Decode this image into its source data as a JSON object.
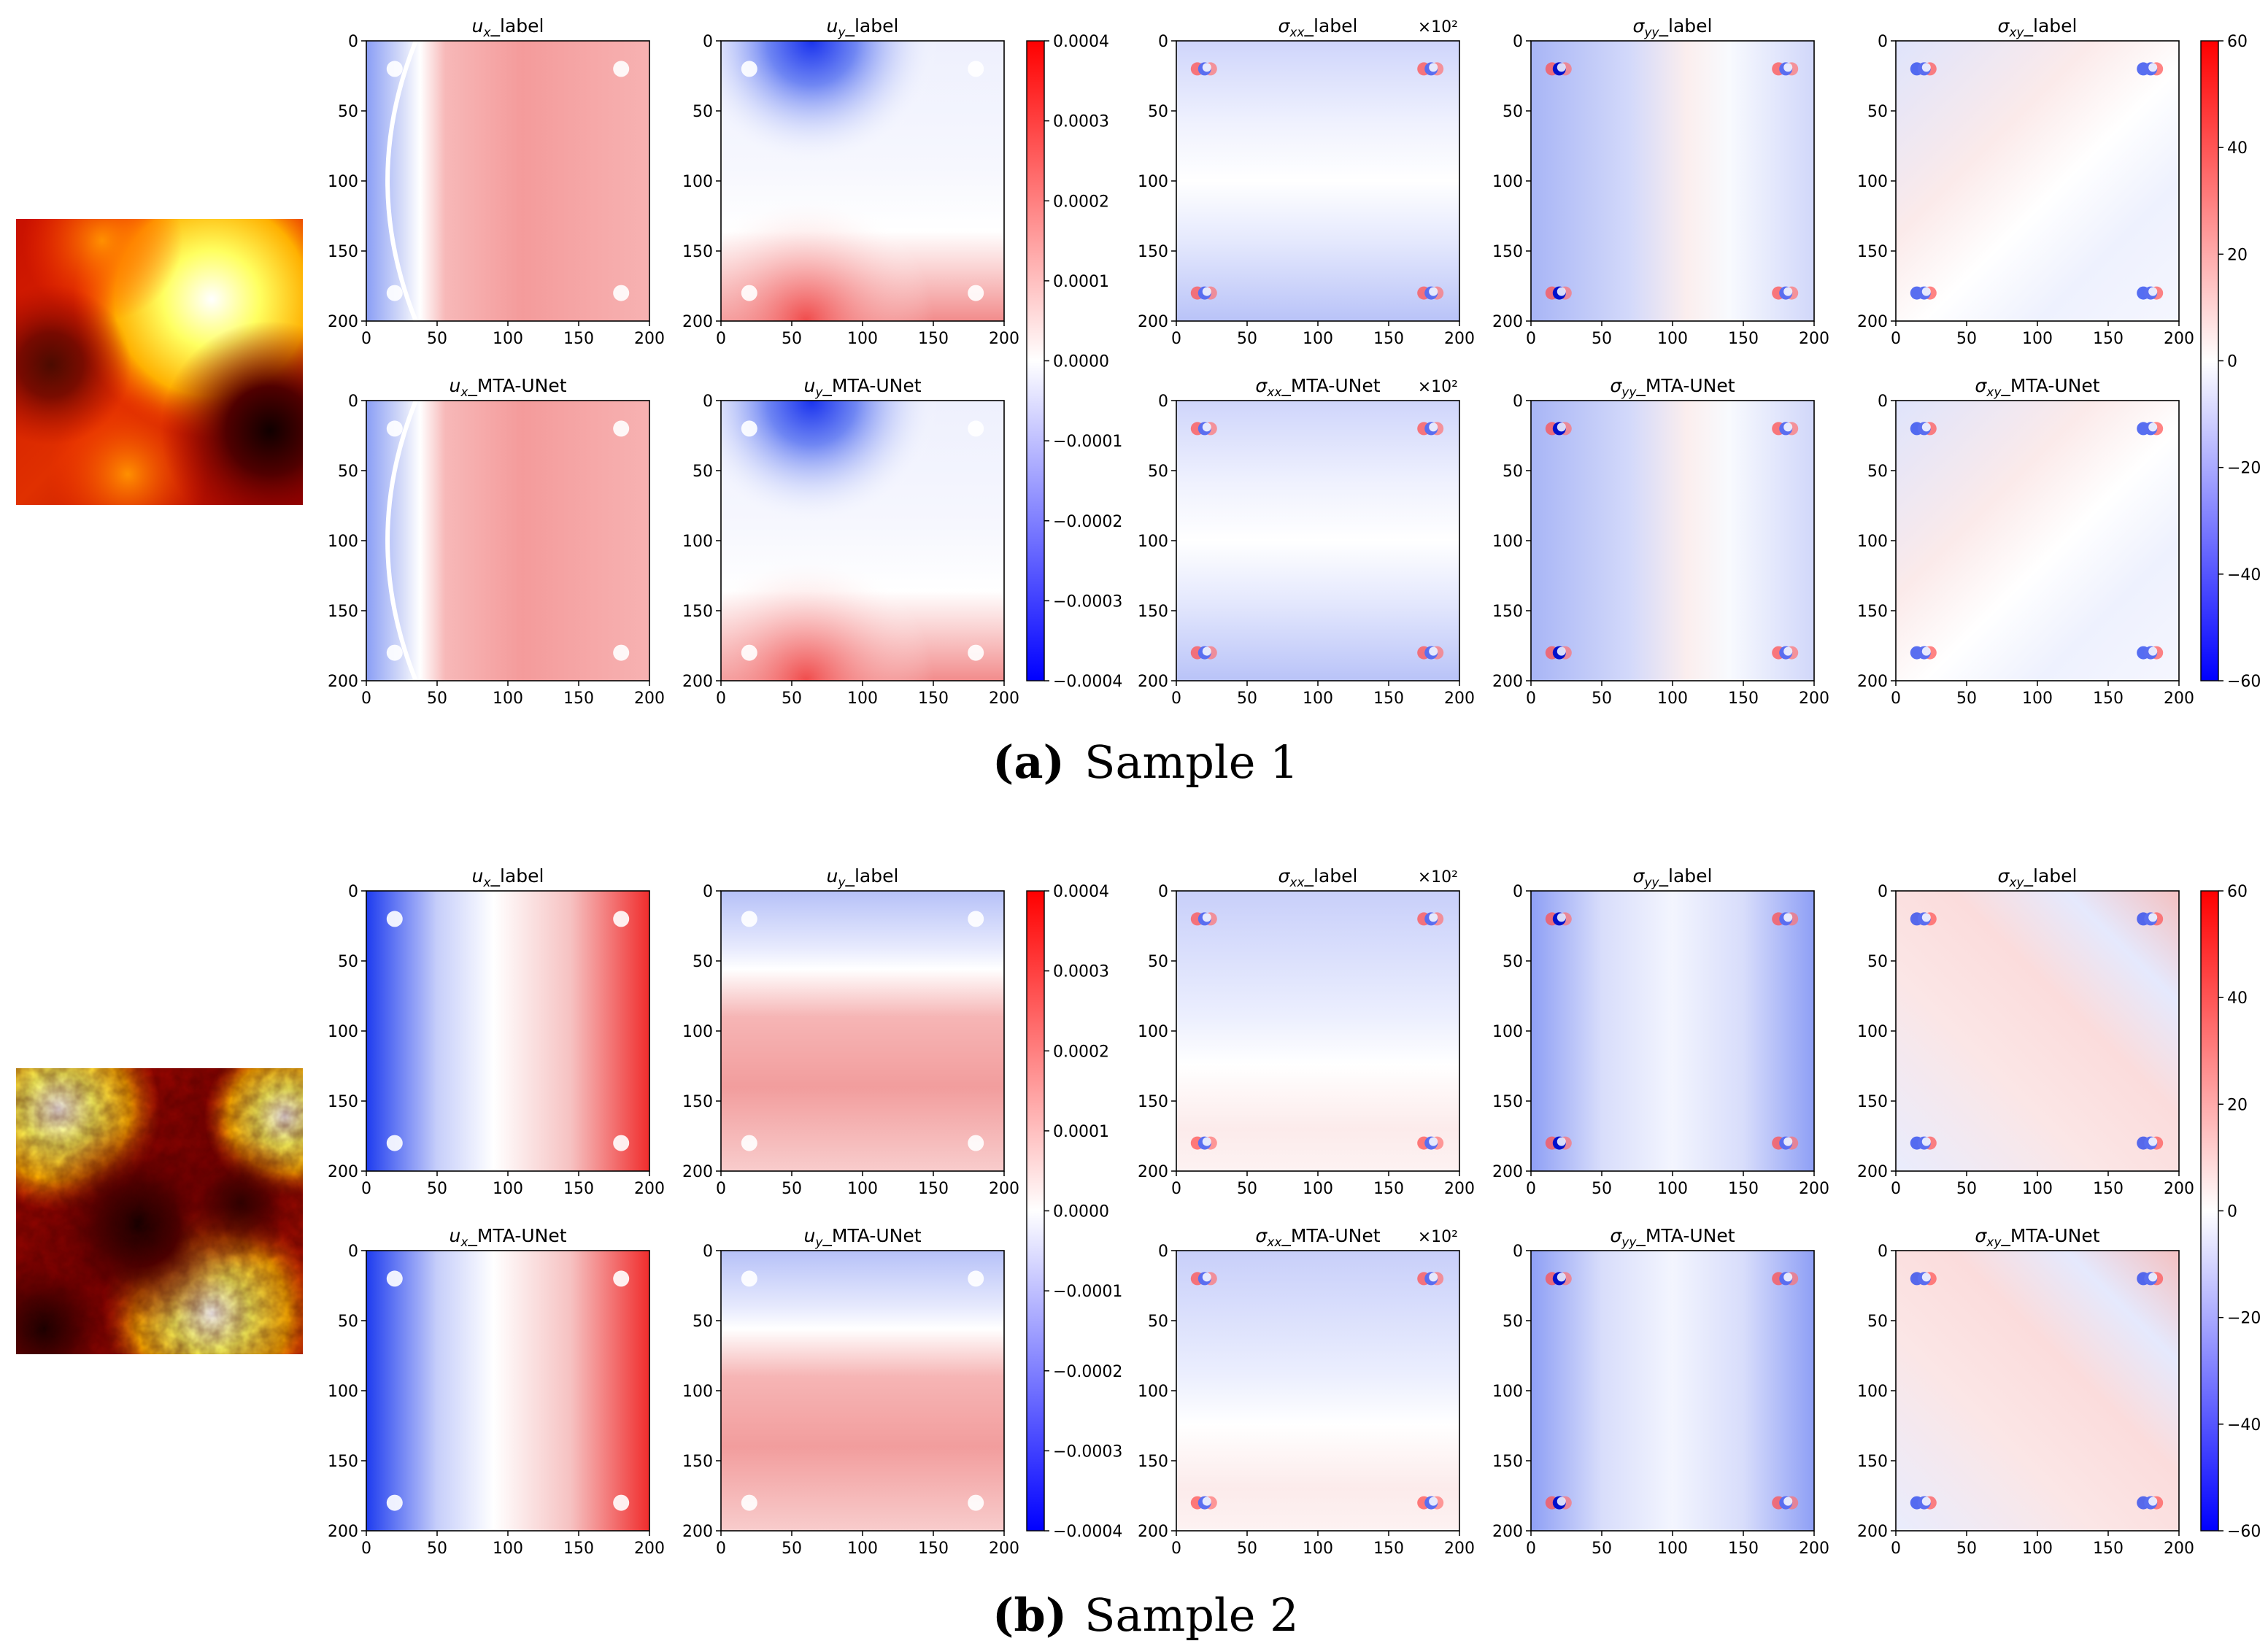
{
  "figure": {
    "samples": [
      {
        "caption_letter": "a",
        "caption_text": "Sample 1"
      },
      {
        "caption_letter": "b",
        "caption_text": "Sample 2"
      }
    ],
    "panel_titles": {
      "ux_label": "u_x_label",
      "uy_label": "u_y_label",
      "sxx_label": "σ_xx_label",
      "syy_label": "σ_yy_label",
      "sxy_label": "σ_xy_label",
      "ux_pred": "u_x_MTA-UNet",
      "uy_pred": "u_y_MTA-UNet",
      "sxx_pred": "σ_xx_MTA-UNet",
      "syy_pred": "σ_yy_MTA-UNet",
      "sxy_pred": "σ_xy_MTA-UNet"
    },
    "stress_scale_note": "×10²",
    "axis_ticks": [
      "0",
      "50",
      "100",
      "150",
      "200"
    ],
    "disp_colorbar_ticks": [
      "0.0004",
      "0.0003",
      "0.0002",
      "0.0001",
      "0.0000",
      "−0.0001",
      "−0.0002",
      "−0.0003",
      "−0.0004"
    ],
    "stress_colorbar_ticks": [
      "60",
      "40",
      "20",
      "0",
      "−20",
      "−40",
      "−60"
    ]
  },
  "colors": {
    "positive": "#ff0000",
    "negative": "#0000ff",
    "neutral": "#ffffff"
  },
  "chart_data": {
    "type": "heatmap",
    "colormap_fields": "bwr",
    "colormap_input": "hot",
    "xlim": [
      0,
      200
    ],
    "ylim": [
      200,
      0
    ],
    "displacement_range": [
      -0.0004,
      0.0004
    ],
    "stress_range": [
      -60,
      60
    ],
    "rows": [
      {
        "sample": "Sample 1",
        "kind": "label",
        "fields": [
          "u_x",
          "u_y",
          "σ_xx",
          "σ_yy",
          "σ_xy"
        ]
      },
      {
        "sample": "Sample 1",
        "kind": "MTA-UNet",
        "fields": [
          "u_x",
          "u_y",
          "σ_xx",
          "σ_yy",
          "σ_xy"
        ]
      },
      {
        "sample": "Sample 2",
        "kind": "label",
        "fields": [
          "u_x",
          "u_y",
          "σ_xx",
          "σ_yy",
          "σ_xy"
        ]
      },
      {
        "sample": "Sample 2",
        "kind": "MTA-UNet",
        "fields": [
          "u_x",
          "u_y",
          "σ_xx",
          "σ_yy",
          "σ_xy"
        ]
      }
    ]
  }
}
